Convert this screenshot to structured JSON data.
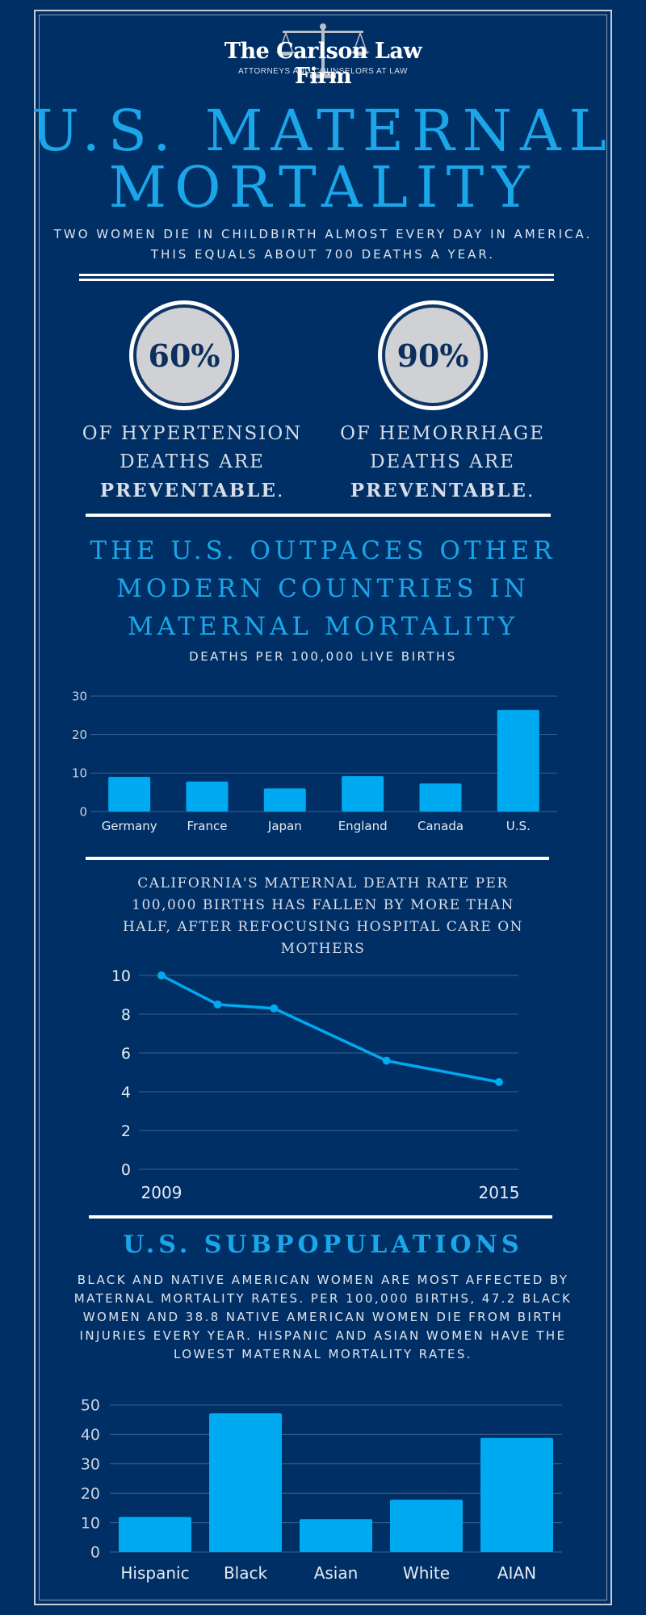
{
  "header": {
    "firm_name": "The Carlson Law Firm",
    "firm_tagline": "ATTORNEYS AND COUNSELORS AT LAW",
    "title_line1": "U.S. MATERNAL",
    "title_line2": "MORTALITY",
    "intro": "TWO WOMEN DIE IN CHILDBIRTH ALMOST EVERY DAY IN AMERICA. THIS EQUALS ABOUT 700 DEATHS A YEAR."
  },
  "stats": [
    {
      "value": "60%",
      "line1": "OF HYPERTENSION",
      "line2": "DEATHS ARE",
      "line3": "PREVENTABLE",
      "line3_suffix": "."
    },
    {
      "value": "90%",
      "line1": "OF HEMORRHAGE",
      "line2": "DEATHS ARE",
      "line3": "PREVENTABLE",
      "line3_suffix": "."
    }
  ],
  "colors": {
    "background": "#002f66",
    "accent": "#1aa6e8",
    "bar": "#00aaf0",
    "grid": "#3c5f8f"
  },
  "section_countries": {
    "title_line1": "THE U.S. OUTPACES OTHER",
    "title_line2": "MODERN COUNTRIES IN",
    "title_line3": "MATERNAL MORTALITY",
    "subtitle": "DEATHS PER 100,000 LIVE BIRTHS"
  },
  "section_california": {
    "title_line1": "CALIFORNIA'S MATERNAL DEATH RATE PER",
    "title_line2": "100,000 BIRTHS HAS FALLEN BY MORE THAN",
    "title_line3": "HALF, AFTER REFOCUSING HOSPITAL CARE ON",
    "title_line4": "MOTHERS"
  },
  "section_subpop": {
    "title": "U.S. SUBPOPULATIONS",
    "line1": "BLACK AND NATIVE AMERICAN WOMEN ARE MOST AFFECTED BY",
    "line2": "MATERNAL MORTALITY RATES. PER 100,000 BIRTHS, 47.2 BLACK",
    "line3": "WOMEN AND 38.8 NATIVE AMERICAN WOMEN DIE FROM BIRTH",
    "line4": "INJURIES EVERY YEAR. HISPANIC AND ASIAN WOMEN HAVE THE",
    "line5": "LOWEST MATERNAL MORTALITY RATES."
  },
  "chart_data": [
    {
      "type": "bar",
      "categories": [
        "Germany",
        "France",
        "Japan",
        "England",
        "Canada",
        "U.S."
      ],
      "values": [
        9,
        7.8,
        6,
        9.2,
        7.3,
        26.4
      ],
      "ylim": [
        0,
        30
      ],
      "yticks": [
        0,
        10,
        20,
        30
      ],
      "grid": true
    },
    {
      "type": "line",
      "x": [
        2009,
        2010,
        2011,
        2013,
        2015
      ],
      "values": [
        10,
        8.5,
        8.3,
        5.6,
        4.5
      ],
      "xtick_labels": [
        "2009",
        "2015"
      ],
      "ylim": [
        0,
        10
      ],
      "yticks": [
        0,
        2,
        4,
        6,
        8,
        10
      ],
      "grid": true
    },
    {
      "type": "bar",
      "categories": [
        "Hispanic",
        "Black",
        "Asian",
        "White",
        "AIAN"
      ],
      "values": [
        11.9,
        47.2,
        11.2,
        17.8,
        38.8
      ],
      "ylim": [
        0,
        50
      ],
      "yticks": [
        0,
        10,
        20,
        30,
        40,
        50
      ],
      "grid": true
    }
  ]
}
